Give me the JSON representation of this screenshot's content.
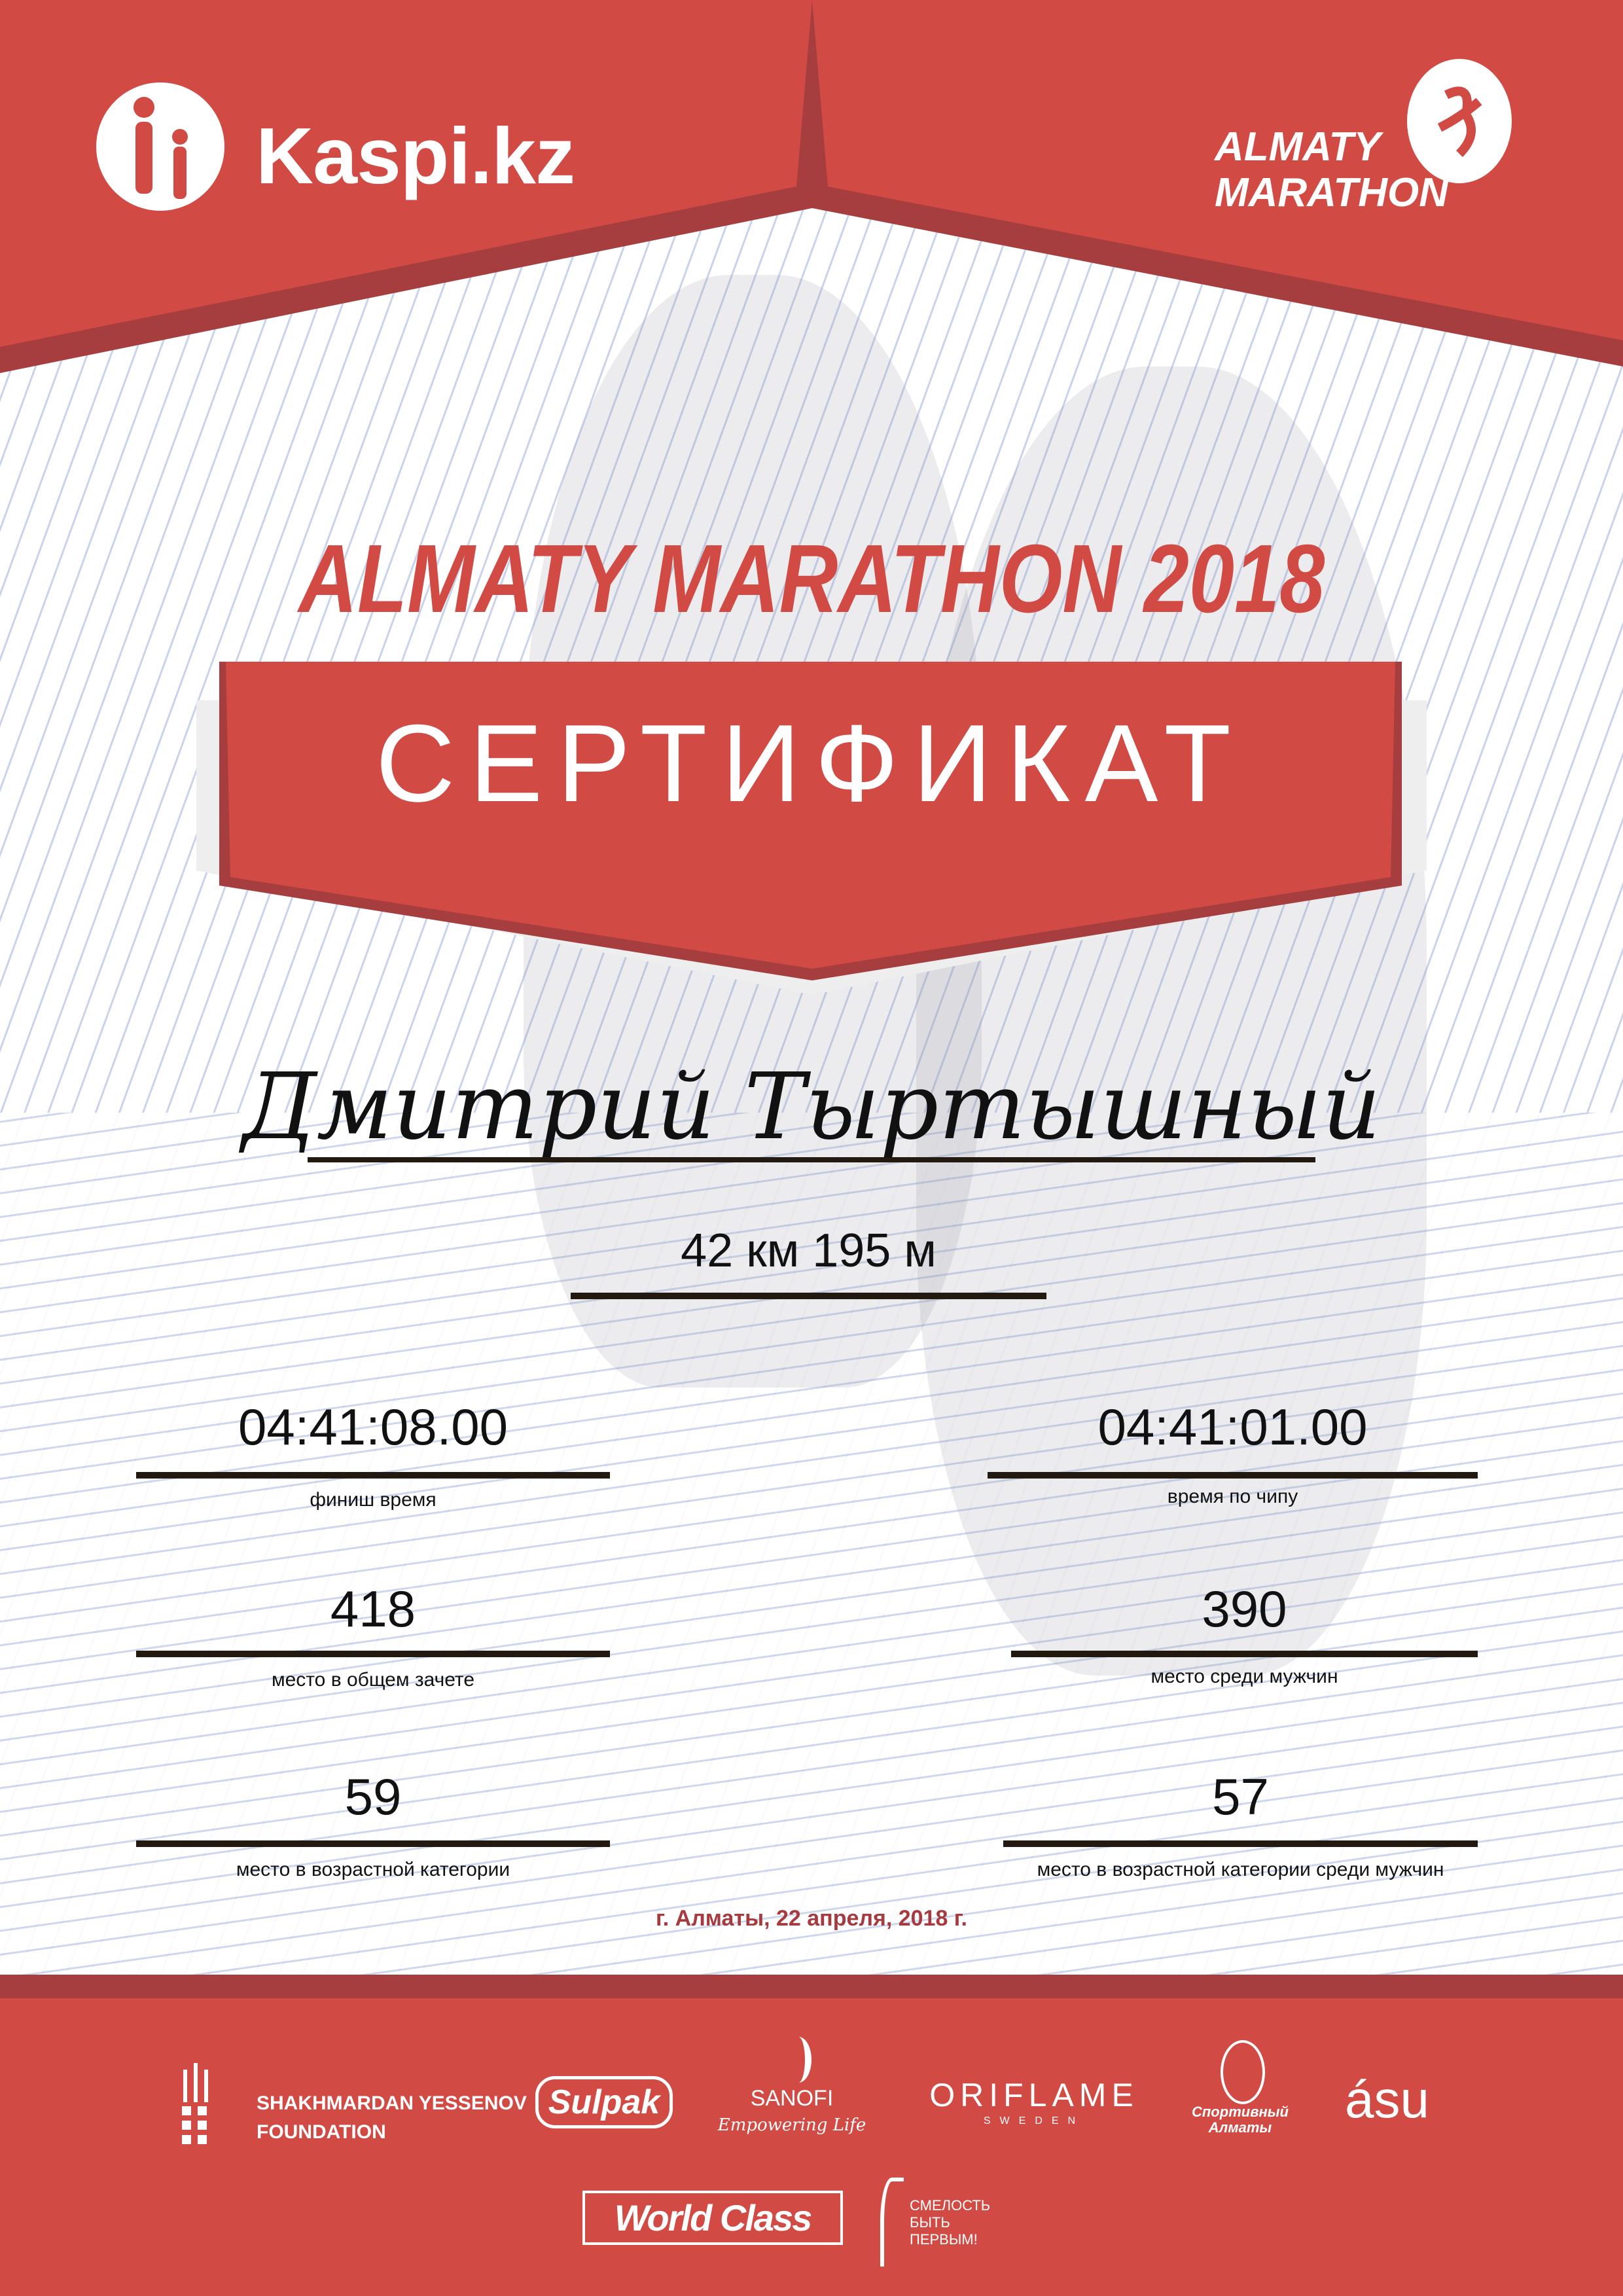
{
  "colors": {
    "brand_red": "#d24a44",
    "dark_red": "#a63e3f",
    "date_red": "#a63a3f",
    "line": "#221a10"
  },
  "header": {
    "sponsor_logo": "Kaspi.kz",
    "event_logo_line1": "ALMATY",
    "event_logo_line2": "MARATHON"
  },
  "title": "ALMATY MARATHON 2018",
  "banner": "СЕРТИФИКАТ",
  "participant_name": "Дмитрий Тыртышный",
  "distance": "42 км 195 м",
  "results": {
    "finish_time": {
      "value": "04:41:08.00",
      "label": "финиш время"
    },
    "chip_time": {
      "value": "04:41:01.00",
      "label": "время по чипу"
    },
    "overall_place": {
      "value": "418",
      "label": "место в общем зачете"
    },
    "male_place": {
      "value": "390",
      "label": "место среди мужчин"
    },
    "age_place": {
      "value": "59",
      "label": "место в возрастной категории"
    },
    "age_male_place": {
      "value": "57",
      "label": "место в возрастной категории среди мужчин"
    }
  },
  "date": "г. Алматы, 22 апреля, 2018 г.",
  "sponsors": {
    "yessenov_line1": "SHAKHMARDAN YESSENOV",
    "yessenov_line2": "FOUNDATION",
    "sulpak": "Sulpak",
    "sanofi": "SANOFI",
    "sanofi_tagline": "Empowering Life",
    "oriflame": "ORIFLAME",
    "oriflame_sub": "SWEDEN",
    "sport_almaty": "Спортивный Алматы",
    "asu": "ásu",
    "worldclass": "World Class",
    "courage_line1": "СМЕЛОСТЬ",
    "courage_line2": "БЫТЬ",
    "courage_line3": "ПЕРВЫМ!"
  }
}
